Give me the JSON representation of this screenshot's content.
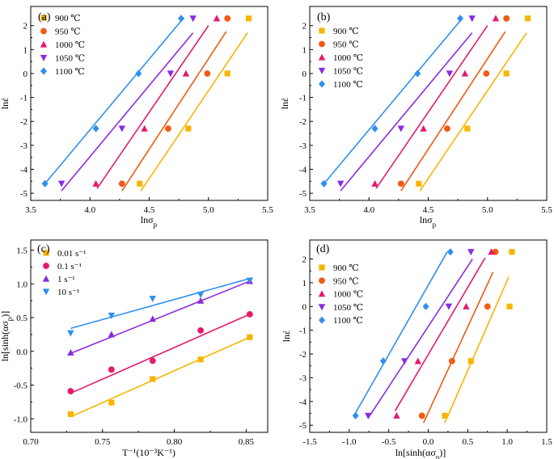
{
  "colors": {
    "c1": "#f7b500",
    "c2": "#f05a12",
    "c3": "#e5196e",
    "c4": "#8a2be2",
    "c5": "#2f8ff0"
  },
  "chart_data": [
    {
      "panel": "(a)",
      "type": "scatter",
      "xlabel": "lnσ",
      "xlabel_sub": "p",
      "ylabel": "lnέ",
      "xlim": [
        3.5,
        5.5
      ],
      "ylim": [
        -5.3,
        2.8
      ],
      "xticks": [
        "3.5",
        "4.0",
        "4.5",
        "5.0",
        "5.5"
      ],
      "yticks": [
        "-5",
        "-4",
        "-3",
        "-2",
        "-1",
        "0",
        "1",
        "2"
      ],
      "xtick_values": [
        3.5,
        4.0,
        4.5,
        5.0,
        5.5
      ],
      "ytick_values": [
        -5,
        -4,
        -3,
        -2,
        -1,
        0,
        1,
        2
      ],
      "legend": "top-left",
      "series": [
        {
          "name": "900 ℃",
          "marker": "square",
          "color": "#f7b500",
          "x": [
            4.42,
            4.83,
            5.16,
            5.34
          ],
          "y": [
            -4.6,
            -2.3,
            0.0,
            2.3
          ],
          "fit": [
            [
              4.43,
              -4.9
            ],
            [
              5.33,
              1.7
            ]
          ]
        },
        {
          "name": "950 ℃",
          "marker": "circle",
          "color": "#f05a12",
          "x": [
            4.27,
            4.66,
            4.99,
            5.16
          ],
          "y": [
            -4.6,
            -2.3,
            0.0,
            2.3
          ],
          "fit": [
            [
              4.27,
              -4.9
            ],
            [
              5.15,
              1.75
            ]
          ]
        },
        {
          "name": "1000 ℃",
          "marker": "triangle-up",
          "color": "#e5196e",
          "x": [
            4.05,
            4.46,
            4.81,
            5.07
          ],
          "y": [
            -4.6,
            -2.3,
            0.0,
            2.3
          ],
          "fit": [
            [
              4.06,
              -4.8
            ],
            [
              5.0,
              2.0
            ]
          ]
        },
        {
          "name": "1050 ℃",
          "marker": "triangle-down",
          "color": "#8a2be2",
          "x": [
            3.76,
            4.27,
            4.68,
            4.87
          ],
          "y": [
            -4.6,
            -2.3,
            0.0,
            2.3
          ],
          "fit": [
            [
              3.76,
              -4.9
            ],
            [
              4.87,
              1.7
            ]
          ]
        },
        {
          "name": "1100 ℃",
          "marker": "diamond",
          "color": "#2f8ff0",
          "x": [
            3.62,
            4.05,
            4.41,
            4.77
          ],
          "y": [
            -4.6,
            -2.3,
            0.0,
            2.3
          ],
          "fit": [
            [
              3.62,
              -4.6
            ],
            [
              4.77,
              2.2
            ]
          ]
        }
      ]
    },
    {
      "panel": "(b)",
      "type": "scatter",
      "xlabel": "lnσ",
      "xlabel_sub": "p",
      "ylabel": "lnέ",
      "xlim": [
        3.5,
        5.5
      ],
      "ylim": [
        -5.3,
        2.8
      ],
      "xticks": [
        "3.5",
        "4.0",
        "4.5",
        "5.0",
        "5.5"
      ],
      "yticks": [
        "-5",
        "-4",
        "-3",
        "-2",
        "-1",
        "0",
        "1",
        "2"
      ],
      "xtick_values": [
        3.5,
        4.0,
        4.5,
        5.0,
        5.5
      ],
      "ytick_values": [
        -5,
        -4,
        -3,
        -2,
        -1,
        0,
        1,
        2
      ],
      "legend": "top-left",
      "series": [
        {
          "name": "900 ℃",
          "marker": "square",
          "color": "#f7b500",
          "x": [
            4.42,
            4.83,
            5.16,
            5.34
          ],
          "y": [
            -4.6,
            -2.3,
            0.0,
            2.3
          ],
          "fit": [
            [
              4.43,
              -4.9
            ],
            [
              5.33,
              1.7
            ]
          ]
        },
        {
          "name": "950 ℃",
          "marker": "circle",
          "color": "#f05a12",
          "x": [
            4.27,
            4.66,
            4.99,
            5.16
          ],
          "y": [
            -4.6,
            -2.3,
            0.0,
            2.3
          ],
          "fit": [
            [
              4.27,
              -4.9
            ],
            [
              5.15,
              1.75
            ]
          ]
        },
        {
          "name": "1000 ℃",
          "marker": "triangle-up",
          "color": "#e5196e",
          "x": [
            4.05,
            4.46,
            4.81,
            5.07
          ],
          "y": [
            -4.6,
            -2.3,
            0.0,
            2.3
          ],
          "fit": [
            [
              4.06,
              -4.8
            ],
            [
              5.0,
              2.0
            ]
          ]
        },
        {
          "name": "1050 ℃",
          "marker": "triangle-down",
          "color": "#8a2be2",
          "x": [
            3.76,
            4.27,
            4.68,
            4.87
          ],
          "y": [
            -4.6,
            -2.3,
            0.0,
            2.3
          ],
          "fit": [
            [
              3.76,
              -4.9
            ],
            [
              4.87,
              1.7
            ]
          ]
        },
        {
          "name": "1100 ℃",
          "marker": "diamond",
          "color": "#2f8ff0",
          "x": [
            3.62,
            4.05,
            4.41,
            4.77
          ],
          "y": [
            -4.6,
            -2.3,
            0.0,
            2.3
          ],
          "fit": [
            [
              3.62,
              -4.6
            ],
            [
              4.77,
              2.2
            ]
          ]
        }
      ]
    },
    {
      "panel": "(c)",
      "type": "scatter",
      "xlabel": "T⁻¹(10⁻³K⁻¹)",
      "ylabel": "ln[sinh(ασ",
      "ylabel_sub": "p",
      "ylabel_end": ")]",
      "xlim": [
        0.7,
        0.865
      ],
      "ylim": [
        -1.2,
        1.65
      ],
      "xticks": [
        "0.70",
        "0.75",
        "0.80",
        "0.85"
      ],
      "yticks": [
        "-1.0",
        "-0.5",
        "0.0",
        "0.5",
        "1.0",
        "1.5"
      ],
      "xtick_values": [
        0.7,
        0.75,
        0.8,
        0.85
      ],
      "ytick_values": [
        -1.0,
        -0.5,
        0.0,
        0.5,
        1.0,
        1.5
      ],
      "legend": "top-left",
      "series": [
        {
          "name": "0.01 s⁻¹",
          "marker": "square",
          "color": "#f7b500",
          "x": [
            0.7278,
            0.7562,
            0.7849,
            0.8183,
            0.8525
          ],
          "y": [
            -0.93,
            -0.76,
            -0.41,
            -0.12,
            0.21
          ],
          "fit": [
            [
              0.7278,
              -0.97
            ],
            [
              0.8525,
              0.21
            ]
          ]
        },
        {
          "name": "0.1 s⁻¹",
          "marker": "circle",
          "color": "#e5196e",
          "x": [
            0.7278,
            0.7562,
            0.7849,
            0.8183,
            0.8525
          ],
          "y": [
            -0.59,
            -0.27,
            -0.14,
            0.31,
            0.55
          ],
          "fit": [
            [
              0.7278,
              -0.62
            ],
            [
              0.8525,
              0.55
            ]
          ]
        },
        {
          "name": "1 s⁻¹",
          "marker": "triangle-up",
          "color": "#8a2be2",
          "x": [
            0.7278,
            0.7562,
            0.7849,
            0.8183,
            0.8525
          ],
          "y": [
            -0.02,
            0.25,
            0.48,
            0.75,
            1.04
          ],
          "fit": [
            [
              0.7278,
              -0.03
            ],
            [
              0.8525,
              1.04
            ]
          ]
        },
        {
          "name": "10 s⁻¹",
          "marker": "triangle-down",
          "color": "#2f8ff0",
          "x": [
            0.7278,
            0.7562,
            0.7849,
            0.8183,
            0.8525
          ],
          "y": [
            0.27,
            0.53,
            0.78,
            0.84,
            1.05
          ],
          "fit": [
            [
              0.7278,
              0.34
            ],
            [
              0.8525,
              1.08
            ]
          ]
        }
      ]
    },
    {
      "panel": "(d)",
      "type": "scatter",
      "xlabel": "ln[sinh(ασ",
      "xlabel_sub": "p",
      "xlabel_end": ")]",
      "ylabel": "lnέ",
      "xlim": [
        -1.5,
        1.5
      ],
      "ylim": [
        -5.3,
        2.8
      ],
      "xticks": [
        "-1.5",
        "-1.0",
        "-0.5",
        "0.0",
        "0.5",
        "1.0",
        "1.5"
      ],
      "yticks": [
        "-5",
        "-4",
        "-3",
        "-2",
        "-1",
        "0",
        "1",
        "2"
      ],
      "xtick_values": [
        -1.5,
        -1.0,
        -0.5,
        0.0,
        0.5,
        1.0,
        1.5
      ],
      "ytick_values": [
        -5,
        -4,
        -3,
        -2,
        -1,
        0,
        1,
        2
      ],
      "legend": "top-left",
      "series": [
        {
          "name": "900 ℃",
          "marker": "square",
          "color": "#f7b500",
          "x": [
            0.21,
            0.54,
            1.03,
            1.06
          ],
          "y": [
            -4.6,
            -2.3,
            0.0,
            2.3
          ],
          "fit": [
            [
              0.21,
              -4.9
            ],
            [
              1.02,
              1.25
            ]
          ]
        },
        {
          "name": "950 ℃",
          "marker": "circle",
          "color": "#f05a12",
          "x": [
            -0.08,
            0.3,
            0.75,
            0.85
          ],
          "y": [
            -4.6,
            -2.3,
            0.0,
            2.3
          ],
          "fit": [
            [
              -0.06,
              -4.9
            ],
            [
              0.82,
              1.45
            ]
          ]
        },
        {
          "name": "1000 ℃",
          "marker": "triangle-up",
          "color": "#e5196e",
          "x": [
            -0.4,
            -0.13,
            0.48,
            0.8
          ],
          "y": [
            -4.6,
            -2.3,
            0.0,
            2.3
          ],
          "fit": [
            [
              -0.42,
              -4.4
            ],
            [
              0.72,
              2.05
            ]
          ]
        },
        {
          "name": "1050 ℃",
          "marker": "triangle-down",
          "color": "#8a2be2",
          "x": [
            -0.76,
            -0.3,
            0.26,
            0.54
          ],
          "y": [
            -4.6,
            -2.3,
            0.0,
            2.3
          ],
          "fit": [
            [
              -0.76,
              -4.7
            ],
            [
              0.56,
              2.0
            ]
          ]
        },
        {
          "name": "1100 ℃",
          "marker": "diamond",
          "color": "#2f8ff0",
          "x": [
            -0.92,
            -0.57,
            -0.03,
            0.28
          ],
          "y": [
            -4.6,
            -2.3,
            0.0,
            2.3
          ],
          "fit": [
            [
              -0.94,
              -4.6
            ],
            [
              0.24,
              2.3
            ]
          ]
        }
      ]
    }
  ]
}
